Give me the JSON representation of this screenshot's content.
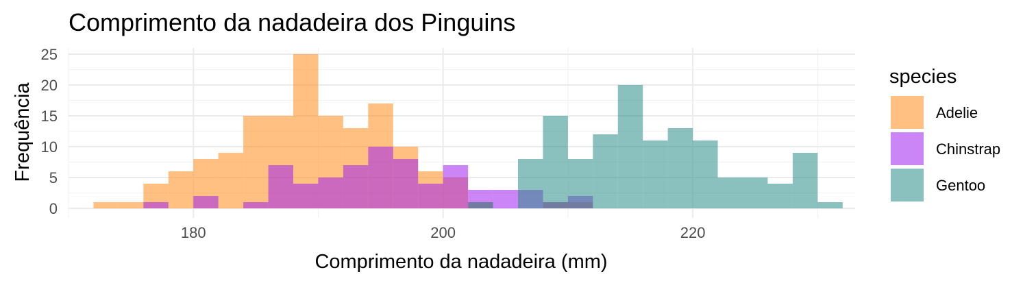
{
  "chart_data": {
    "type": "histogram",
    "title": "Comprimento da nadadeira dos Pinguins",
    "xlabel": "Comprimento da nadadeira (mm)",
    "ylabel": "Frequência",
    "xlim": [
      170,
      233
    ],
    "ylim": [
      0,
      26
    ],
    "x_ticks": [
      180,
      200,
      220
    ],
    "y_ticks": [
      0,
      5,
      10,
      15,
      20,
      25
    ],
    "grid": true,
    "legend_position": "right",
    "legend_title": "species",
    "series": [
      {
        "name": "Adelie",
        "color": "#FF8C1A",
        "bins": [
          {
            "x0": 172,
            "x1": 174,
            "count": 1
          },
          {
            "x0": 174,
            "x1": 176,
            "count": 1
          },
          {
            "x0": 176,
            "x1": 178,
            "count": 4
          },
          {
            "x0": 178,
            "x1": 180,
            "count": 6
          },
          {
            "x0": 180,
            "x1": 182,
            "count": 8
          },
          {
            "x0": 182,
            "x1": 184,
            "count": 9
          },
          {
            "x0": 184,
            "x1": 186,
            "count": 15
          },
          {
            "x0": 186,
            "x1": 188,
            "count": 15
          },
          {
            "x0": 188,
            "x1": 190,
            "count": 25
          },
          {
            "x0": 190,
            "x1": 192,
            "count": 15
          },
          {
            "x0": 192,
            "x1": 194,
            "count": 13
          },
          {
            "x0": 194,
            "x1": 196,
            "count": 17
          },
          {
            "x0": 196,
            "x1": 198,
            "count": 10
          },
          {
            "x0": 198,
            "x1": 200,
            "count": 6
          },
          {
            "x0": 200,
            "x1": 202,
            "count": 5
          },
          {
            "x0": 202,
            "x1": 204,
            "count": 1
          },
          {
            "x0": 208,
            "x1": 210,
            "count": 1
          },
          {
            "x0": 210,
            "x1": 212,
            "count": 1
          }
        ]
      },
      {
        "name": "Chinstrap",
        "color": "#A020F0",
        "bins": [
          {
            "x0": 176,
            "x1": 178,
            "count": 1
          },
          {
            "x0": 180,
            "x1": 182,
            "count": 2
          },
          {
            "x0": 184,
            "x1": 186,
            "count": 1
          },
          {
            "x0": 186,
            "x1": 188,
            "count": 7
          },
          {
            "x0": 188,
            "x1": 190,
            "count": 4
          },
          {
            "x0": 190,
            "x1": 192,
            "count": 5
          },
          {
            "x0": 192,
            "x1": 194,
            "count": 7
          },
          {
            "x0": 194,
            "x1": 196,
            "count": 10
          },
          {
            "x0": 196,
            "x1": 198,
            "count": 8
          },
          {
            "x0": 198,
            "x1": 200,
            "count": 4
          },
          {
            "x0": 200,
            "x1": 202,
            "count": 7
          },
          {
            "x0": 202,
            "x1": 204,
            "count": 3
          },
          {
            "x0": 204,
            "x1": 206,
            "count": 3
          },
          {
            "x0": 206,
            "x1": 208,
            "count": 3
          },
          {
            "x0": 208,
            "x1": 210,
            "count": 1
          },
          {
            "x0": 210,
            "x1": 212,
            "count": 2
          }
        ]
      },
      {
        "name": "Gentoo",
        "color": "#2A8C86",
        "bins": [
          {
            "x0": 202,
            "x1": 204,
            "count": 1
          },
          {
            "x0": 206,
            "x1": 208,
            "count": 8
          },
          {
            "x0": 208,
            "x1": 210,
            "count": 15
          },
          {
            "x0": 210,
            "x1": 212,
            "count": 8
          },
          {
            "x0": 212,
            "x1": 214,
            "count": 12
          },
          {
            "x0": 214,
            "x1": 216,
            "count": 20
          },
          {
            "x0": 216,
            "x1": 218,
            "count": 11
          },
          {
            "x0": 218,
            "x1": 220,
            "count": 13
          },
          {
            "x0": 220,
            "x1": 222,
            "count": 11
          },
          {
            "x0": 222,
            "x1": 224,
            "count": 5
          },
          {
            "x0": 224,
            "x1": 226,
            "count": 5
          },
          {
            "x0": 226,
            "x1": 228,
            "count": 4
          },
          {
            "x0": 228,
            "x1": 230,
            "count": 9
          },
          {
            "x0": 230,
            "x1": 232,
            "count": 1
          }
        ]
      }
    ]
  }
}
